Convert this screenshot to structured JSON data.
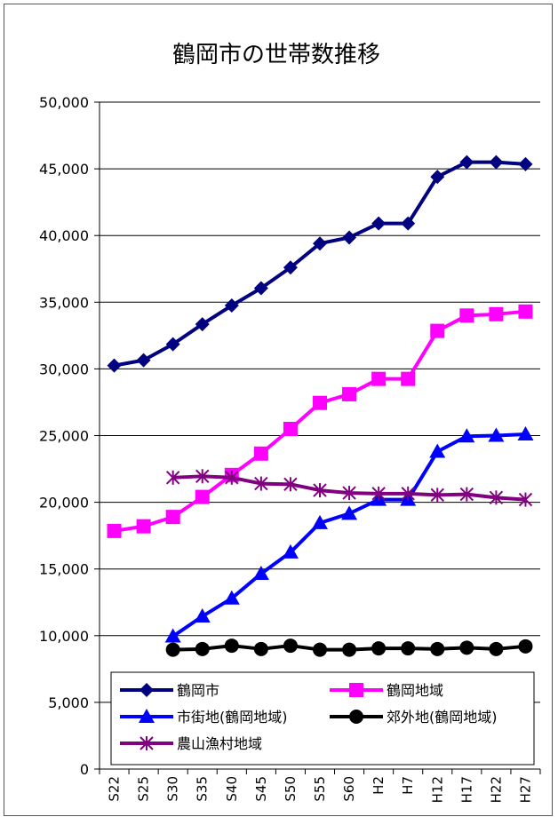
{
  "chart_data": {
    "type": "line",
    "title": "鶴岡市の世帯数推移",
    "xlabel": "",
    "ylabel": "",
    "ylim": [
      0,
      50000
    ],
    "yticks": [
      0,
      5000,
      10000,
      15000,
      20000,
      25000,
      30000,
      35000,
      40000,
      45000,
      50000
    ],
    "ytick_labels": [
      "0",
      "5,000",
      "10,000",
      "15,000",
      "20,000",
      "25,000",
      "30,000",
      "35,000",
      "40,000",
      "45,000",
      "50,000"
    ],
    "categories": [
      "S22",
      "S25",
      "S30",
      "S35",
      "S40",
      "S45",
      "S50",
      "S55",
      "S60",
      "H2",
      "H7",
      "H12",
      "H17",
      "H22",
      "H27"
    ],
    "grid": true,
    "legend_position": "bottom",
    "series": [
      {
        "name": "鶴岡市",
        "color": "#000080",
        "marker": "diamond",
        "values": [
          30250,
          30650,
          31850,
          33350,
          34750,
          36050,
          37600,
          39400,
          39850,
          40900,
          40900,
          44400,
          45500,
          45500,
          45350
        ]
      },
      {
        "name": "鶴岡地域",
        "color": "#ff00ff",
        "marker": "square",
        "values": [
          17850,
          18200,
          18900,
          20400,
          22050,
          23650,
          25500,
          27450,
          28100,
          29250,
          29250,
          32850,
          34000,
          34100,
          34300
        ]
      },
      {
        "name": "市街地(鶴岡地域)",
        "color": "#0000ff",
        "marker": "triangle",
        "values": [
          null,
          null,
          9950,
          11450,
          12800,
          14650,
          16250,
          18450,
          19150,
          20200,
          20200,
          23800,
          24950,
          25000,
          25100
        ]
      },
      {
        "name": "郊外地(鶴岡地域)",
        "color": "#000000",
        "marker": "circle",
        "values": [
          null,
          null,
          8950,
          9000,
          9250,
          9000,
          9250,
          8950,
          8950,
          9050,
          9050,
          9000,
          9100,
          9000,
          9200
        ]
      },
      {
        "name": "農山漁村地域",
        "color": "#800080",
        "marker": "asterisk",
        "values": [
          null,
          null,
          21850,
          21950,
          21850,
          21400,
          21350,
          20900,
          20700,
          20650,
          20650,
          20550,
          20600,
          20350,
          20200
        ]
      }
    ]
  }
}
